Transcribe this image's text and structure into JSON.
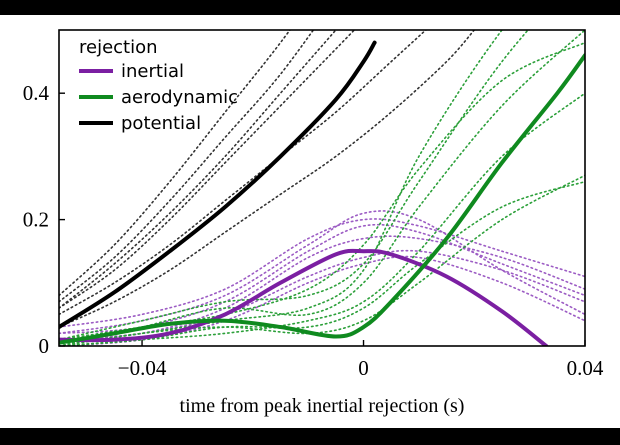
{
  "chart_data": {
    "type": "line",
    "title": "",
    "xlabel": "time from peak inertial rejection (s)",
    "ylabel": "",
    "xlim": [
      -0.055,
      0.04
    ],
    "ylim": [
      0,
      0.5
    ],
    "x_ticks": [
      -0.04,
      0,
      0.04
    ],
    "x_tick_labels": [
      "−0.04",
      "0",
      "0.04"
    ],
    "y_ticks": [
      0,
      0.2,
      0.4
    ],
    "y_tick_labels": [
      "0",
      "0.2",
      "0.4"
    ],
    "grid": false,
    "legend": {
      "title": "rejection",
      "placement": "top-left"
    },
    "colors": {
      "inertial": "#7b1fa2",
      "aerodynamic": "#0f8a1f",
      "potential": "#000000"
    },
    "series": [
      {
        "name": "inertial",
        "color": "#7b1fa2",
        "x": [
          -0.055,
          -0.045,
          -0.035,
          -0.025,
          -0.015,
          -0.005,
          0,
          0.005,
          0.015,
          0.025,
          0.033
        ],
        "y": [
          0.01,
          0.01,
          0.02,
          0.05,
          0.1,
          0.145,
          0.15,
          0.145,
          0.11,
          0.055,
          0.0
        ]
      },
      {
        "name": "aerodynamic",
        "color": "#0f8a1f",
        "x": [
          -0.055,
          -0.045,
          -0.035,
          -0.025,
          -0.015,
          -0.005,
          0,
          0.005,
          0.015,
          0.025,
          0.035,
          0.04
        ],
        "y": [
          0.005,
          0.02,
          0.035,
          0.04,
          0.03,
          0.015,
          0.03,
          0.07,
          0.17,
          0.29,
          0.4,
          0.46
        ]
      },
      {
        "name": "potential",
        "color": "#000000",
        "x": [
          -0.055,
          -0.045,
          -0.035,
          -0.025,
          -0.015,
          -0.005,
          0,
          0.002
        ],
        "y": [
          0.03,
          0.085,
          0.15,
          0.22,
          0.3,
          0.39,
          0.45,
          0.48
        ]
      }
    ],
    "individual_traces": [
      {
        "group": "inertial",
        "color": "#9c5cc4",
        "x": [
          -0.055,
          -0.04,
          -0.025,
          -0.01,
          0,
          0.01,
          0.025,
          0.04
        ],
        "y": [
          0.02,
          0.03,
          0.07,
          0.15,
          0.19,
          0.18,
          0.13,
          0.08
        ]
      },
      {
        "group": "inertial",
        "color": "#9c5cc4",
        "x": [
          -0.055,
          -0.04,
          -0.025,
          -0.01,
          0,
          0.01,
          0.025,
          0.04
        ],
        "y": [
          0.01,
          0.02,
          0.06,
          0.14,
          0.17,
          0.17,
          0.14,
          0.09
        ]
      },
      {
        "group": "inertial",
        "color": "#9c5cc4",
        "x": [
          -0.055,
          -0.04,
          -0.025,
          -0.01,
          0,
          0.01,
          0.025,
          0.04
        ],
        "y": [
          0.02,
          0.04,
          0.08,
          0.16,
          0.21,
          0.2,
          0.12,
          0.05
        ]
      },
      {
        "group": "inertial",
        "color": "#9c5cc4",
        "x": [
          -0.055,
          -0.04,
          -0.025,
          -0.01,
          0,
          0.01,
          0.025,
          0.04
        ],
        "y": [
          0.01,
          0.02,
          0.05,
          0.11,
          0.14,
          0.15,
          0.12,
          0.07
        ]
      },
      {
        "group": "inertial",
        "color": "#9c5cc4",
        "x": [
          -0.055,
          -0.04,
          -0.025,
          -0.01,
          0,
          0.01,
          0.025,
          0.04
        ],
        "y": [
          0.03,
          0.05,
          0.09,
          0.17,
          0.2,
          0.19,
          0.15,
          0.11
        ]
      },
      {
        "group": "inertial",
        "color": "#9c5cc4",
        "x": [
          -0.055,
          -0.04,
          -0.025,
          -0.01,
          0,
          0.01,
          0.025,
          0.04
        ],
        "y": [
          0.0,
          0.01,
          0.04,
          0.1,
          0.13,
          0.14,
          0.1,
          0.04
        ]
      },
      {
        "group": "aerodynamic",
        "color": "#2ca03a",
        "x": [
          -0.055,
          -0.04,
          -0.025,
          -0.01,
          0,
          0.01,
          0.025,
          0.04
        ],
        "y": [
          0.0,
          0.03,
          0.06,
          0.05,
          0.1,
          0.22,
          0.38,
          0.5
        ]
      },
      {
        "group": "aerodynamic",
        "color": "#2ca03a",
        "x": [
          -0.055,
          -0.04,
          -0.025,
          -0.01,
          0,
          0.01,
          0.025,
          0.04
        ],
        "y": [
          0.01,
          0.04,
          0.07,
          0.08,
          0.13,
          0.26,
          0.45,
          0.6
        ]
      },
      {
        "group": "aerodynamic",
        "color": "#2ca03a",
        "x": [
          -0.055,
          -0.04,
          -0.025,
          -0.01,
          0,
          0.01,
          0.025,
          0.04
        ],
        "y": [
          0.0,
          0.02,
          0.03,
          0.02,
          0.04,
          0.1,
          0.2,
          0.27
        ]
      },
      {
        "group": "aerodynamic",
        "color": "#2ca03a",
        "x": [
          -0.055,
          -0.04,
          -0.025,
          -0.01,
          0,
          0.01,
          0.025,
          0.04
        ],
        "y": [
          0.0,
          0.02,
          0.04,
          0.06,
          0.12,
          0.3,
          0.5,
          0.65
        ]
      },
      {
        "group": "aerodynamic",
        "color": "#2ca03a",
        "x": [
          -0.055,
          -0.04,
          -0.025,
          -0.01,
          0,
          0.01,
          0.025,
          0.04
        ],
        "y": [
          0.01,
          0.03,
          0.05,
          0.09,
          0.16,
          0.28,
          0.42,
          0.48
        ]
      },
      {
        "group": "aerodynamic",
        "color": "#2ca03a",
        "x": [
          -0.055,
          -0.04,
          -0.025,
          -0.01,
          0,
          0.01,
          0.025,
          0.04
        ],
        "y": [
          0.0,
          0.01,
          0.02,
          0.04,
          0.07,
          0.15,
          0.3,
          0.4
        ]
      },
      {
        "group": "aerodynamic",
        "color": "#2ca03a",
        "x": [
          -0.055,
          -0.04,
          -0.025,
          -0.01,
          0,
          0.01,
          0.025,
          0.04
        ],
        "y": [
          0.0,
          0.01,
          0.03,
          0.03,
          0.06,
          0.13,
          0.22,
          0.26
        ]
      },
      {
        "group": "potential",
        "color": "#333333",
        "x": [
          -0.055,
          -0.045,
          -0.035,
          -0.025,
          -0.015,
          -0.005,
          0.005
        ],
        "y": [
          0.06,
          0.12,
          0.2,
          0.29,
          0.38,
          0.47,
          0.56
        ]
      },
      {
        "group": "potential",
        "color": "#333333",
        "x": [
          -0.055,
          -0.045,
          -0.035,
          -0.025,
          -0.015,
          -0.005
        ],
        "y": [
          0.07,
          0.14,
          0.23,
          0.33,
          0.43,
          0.55
        ]
      },
      {
        "group": "potential",
        "color": "#333333",
        "x": [
          -0.055,
          -0.045,
          -0.035,
          -0.025,
          -0.015,
          -0.005,
          0.005,
          0.015
        ],
        "y": [
          0.05,
          0.1,
          0.16,
          0.23,
          0.3,
          0.37,
          0.45,
          0.53
        ]
      },
      {
        "group": "potential",
        "color": "#333333",
        "x": [
          -0.055,
          -0.045,
          -0.035,
          -0.025,
          -0.015,
          -0.005,
          0.005,
          0.015,
          0.02
        ],
        "y": [
          0.03,
          0.07,
          0.12,
          0.18,
          0.24,
          0.3,
          0.37,
          0.45,
          0.5
        ]
      },
      {
        "group": "potential",
        "color": "#333333",
        "x": [
          -0.055,
          -0.045,
          -0.035,
          -0.025,
          -0.015,
          -0.005
        ],
        "y": [
          0.08,
          0.16,
          0.26,
          0.37,
          0.48,
          0.6
        ]
      },
      {
        "group": "potential",
        "color": "#333333",
        "x": [
          -0.055,
          -0.045,
          -0.035,
          -0.025,
          -0.015,
          -0.005,
          0.005
        ],
        "y": [
          0.06,
          0.13,
          0.21,
          0.3,
          0.4,
          0.5,
          0.6
        ]
      }
    ]
  }
}
